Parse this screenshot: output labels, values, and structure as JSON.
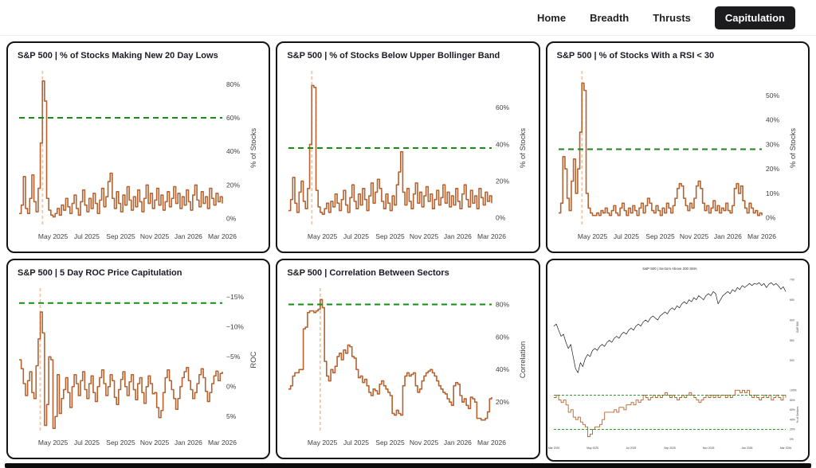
{
  "nav": {
    "items": [
      {
        "label": "Home",
        "active": false
      },
      {
        "label": "Breadth",
        "active": false
      },
      {
        "label": "Thrusts",
        "active": false
      },
      {
        "label": "Capitulation",
        "active": true
      }
    ]
  },
  "colors": {
    "line": "#b5622f",
    "price": "#1a1a1a",
    "threshold": "#1a8a1a",
    "vline": "#f2c5a4",
    "tick": "#3f3f3f",
    "panel_border": "#141414",
    "nav_active_bg": "#1c1c1e",
    "title_text": "#1b1b26"
  },
  "chart_data": [
    {
      "type": "line",
      "kind": "main",
      "title": "S&P 500 | % of Stocks Making New 20 Day Lows",
      "ytitle": "% of Stocks",
      "ydomain": [
        88,
        -4
      ],
      "yticks": [
        {
          "v": 0,
          "label": "0%"
        },
        {
          "v": 20,
          "label": "20%"
        },
        {
          "v": 40,
          "label": "40%"
        },
        {
          "v": 60,
          "label": "60%"
        },
        {
          "v": 80,
          "label": "80%"
        }
      ],
      "xticks": [
        {
          "p": 0.167,
          "label": "May 2025"
        },
        {
          "p": 0.333,
          "label": "Jul 2025"
        },
        {
          "p": 0.5,
          "label": "Sep 2025"
        },
        {
          "p": 0.667,
          "label": "Nov 2025"
        },
        {
          "p": 0.833,
          "label": "Jan 2026"
        },
        {
          "p": 1,
          "label": "Mar 2026"
        }
      ],
      "thresholds": [
        60
      ],
      "vline": 0.115,
      "color": "#b5622f",
      "values": [
        3,
        8,
        25,
        6,
        3,
        12,
        26,
        10,
        4,
        18,
        45,
        82,
        70,
        12,
        5,
        2,
        1,
        3,
        6,
        2,
        8,
        5,
        12,
        7,
        3,
        9,
        14,
        6,
        2,
        10,
        17,
        8,
        4,
        12,
        6,
        15,
        9,
        3,
        11,
        18,
        7,
        13,
        22,
        27,
        12,
        6,
        16,
        9,
        4,
        14,
        8,
        19,
        11,
        5,
        13,
        7,
        17,
        10,
        4,
        12,
        20,
        9,
        15,
        6,
        11,
        18,
        8,
        14,
        5,
        10,
        16,
        7,
        12,
        19,
        9,
        15,
        6,
        13,
        8,
        17,
        10,
        5,
        14,
        20,
        11,
        7,
        16,
        9,
        13,
        6,
        18,
        12,
        8,
        15,
        10,
        13,
        9
      ]
    },
    {
      "type": "line",
      "kind": "main",
      "title": "S&P 500 | % of Stocks Below Upper Bollinger Band",
      "ytitle": "% of Stocks",
      "ydomain": [
        80,
        -4
      ],
      "yticks": [
        {
          "v": 0,
          "label": "0%"
        },
        {
          "v": 20,
          "label": "20%"
        },
        {
          "v": 40,
          "label": "40%"
        },
        {
          "v": 60,
          "label": "60%"
        }
      ],
      "xticks": [
        {
          "p": 0.167,
          "label": "May 2025"
        },
        {
          "p": 0.333,
          "label": "Jul 2025"
        },
        {
          "p": 0.5,
          "label": "Sep 2025"
        },
        {
          "p": 0.667,
          "label": "Nov 2025"
        },
        {
          "p": 0.833,
          "label": "Jan 2026"
        },
        {
          "p": 1,
          "label": "Mar 2026"
        }
      ],
      "thresholds": [
        38
      ],
      "vline": 0.115,
      "color": "#b5622f",
      "values": [
        4,
        10,
        22,
        8,
        3,
        14,
        20,
        9,
        5,
        16,
        40,
        72,
        71,
        15,
        6,
        3,
        2,
        5,
        8,
        3,
        9,
        6,
        13,
        8,
        4,
        10,
        15,
        7,
        3,
        11,
        18,
        9,
        5,
        13,
        7,
        16,
        10,
        4,
        12,
        19,
        8,
        14,
        21,
        16,
        9,
        5,
        13,
        8,
        4,
        12,
        7,
        18,
        25,
        36,
        14,
        7,
        16,
        9,
        5,
        13,
        19,
        8,
        14,
        6,
        12,
        17,
        9,
        13,
        5,
        10,
        15,
        7,
        11,
        18,
        8,
        14,
        6,
        12,
        7,
        16,
        9,
        5,
        13,
        18,
        10,
        6,
        15,
        8,
        12,
        5,
        16,
        11,
        7,
        14,
        9,
        12,
        8
      ]
    },
    {
      "type": "line",
      "kind": "main",
      "title": "S&P 500 | % of Stocks With a RSI < 30",
      "ytitle": "% of Stocks",
      "ydomain": [
        60,
        -3
      ],
      "yticks": [
        {
          "v": 0,
          "label": "0%"
        },
        {
          "v": 10,
          "label": "10%"
        },
        {
          "v": 20,
          "label": "20%"
        },
        {
          "v": 30,
          "label": "30%"
        },
        {
          "v": 40,
          "label": "40%"
        },
        {
          "v": 50,
          "label": "50%"
        }
      ],
      "xticks": [
        {
          "p": 0.167,
          "label": "May 2025"
        },
        {
          "p": 0.333,
          "label": "Jul 2025"
        },
        {
          "p": 0.5,
          "label": "Sep 2025"
        },
        {
          "p": 0.667,
          "label": "Nov 2025"
        },
        {
          "p": 0.833,
          "label": "Jan 2026"
        },
        {
          "p": 1,
          "label": "Mar 2026"
        }
      ],
      "thresholds": [
        28
      ],
      "vline": 0.115,
      "color": "#b5622f",
      "values": [
        2,
        6,
        25,
        20,
        8,
        3,
        15,
        24,
        10,
        20,
        35,
        55,
        52,
        10,
        4,
        2,
        1,
        1,
        2,
        1,
        3,
        2,
        4,
        2,
        1,
        3,
        5,
        2,
        1,
        4,
        6,
        3,
        1,
        4,
        2,
        5,
        3,
        1,
        4,
        6,
        2,
        5,
        8,
        6,
        3,
        2,
        5,
        3,
        1,
        4,
        2,
        6,
        4,
        2,
        5,
        8,
        12,
        14,
        13,
        8,
        5,
        3,
        6,
        4,
        8,
        13,
        15,
        12,
        6,
        3,
        5,
        2,
        4,
        7,
        3,
        5,
        2,
        4,
        3,
        6,
        3,
        2,
        5,
        12,
        14,
        10,
        13,
        7,
        4,
        2,
        6,
        4,
        2,
        3,
        1,
        2,
        1
      ]
    },
    {
      "type": "line",
      "kind": "main",
      "title": "S&P 500 | 5 Day ROC Price Capitulation",
      "ytitle": "ROC",
      "ydomain": [
        -16.5,
        7.5
      ],
      "yticks": [
        {
          "v": -15,
          "label": "−15%"
        },
        {
          "v": -10,
          "label": "−10%"
        },
        {
          "v": -5,
          "label": "−5%"
        },
        {
          "v": 0,
          "label": "0%"
        },
        {
          "v": 5,
          "label": "5%"
        }
      ],
      "xticks": [
        {
          "p": 0.167,
          "label": "May 2025"
        },
        {
          "p": 0.333,
          "label": "Jul 2025"
        },
        {
          "p": 0.5,
          "label": "Sep 2025"
        },
        {
          "p": 0.667,
          "label": "Nov 2025"
        },
        {
          "p": 0.833,
          "label": "Jan 2026"
        },
        {
          "p": 1,
          "label": "Mar 2026"
        }
      ],
      "thresholds": [
        -14
      ],
      "vline": 0.104,
      "color": "#b5622f",
      "values": [
        -4.5,
        -3,
        -0.5,
        1.5,
        -1,
        -2.5,
        1,
        2,
        -3.5,
        -8,
        -12.5,
        -9,
        6.5,
        3,
        -5,
        -4.5,
        7,
        5,
        -2,
        4.5,
        2,
        0.5,
        -1.5,
        1,
        3.5,
        0,
        -2,
        -0.5,
        1.5,
        -1,
        -2.5,
        0.5,
        2,
        -0.5,
        -1.8,
        1,
        2.5,
        0,
        -1.5,
        -2.8,
        -0.5,
        1.5,
        0,
        -2,
        -1,
        1.8,
        3,
        0.5,
        -1.2,
        -2.5,
        0,
        1.5,
        -0.8,
        -2,
        0.5,
        2.2,
        -0.5,
        -1.5,
        1,
        2.8,
        0,
        -1.8,
        -0.5,
        1.2,
        1,
        3.5,
        5.2,
        4,
        1,
        -1.5,
        -2.8,
        -1,
        0.5,
        2,
        3.8,
        2,
        0,
        -1.5,
        -2.5,
        -3.2,
        -1,
        0.5,
        2,
        1,
        -0.5,
        -2,
        -3,
        -1.5,
        0.8,
        2.5,
        1,
        -0.5,
        -1.8,
        -2.6,
        -1,
        -2.2,
        -2.5
      ]
    },
    {
      "type": "line",
      "kind": "main",
      "title": "S&P 500 | Correlation Between Sectors",
      "ytitle": "Correlation",
      "ydomain": [
        90,
        2
      ],
      "yticks": [
        {
          "v": 20,
          "label": "20%"
        },
        {
          "v": 40,
          "label": "40%"
        },
        {
          "v": 60,
          "label": "60%"
        },
        {
          "v": 80,
          "label": "80%"
        }
      ],
      "xticks": [
        {
          "p": 0.167,
          "label": "May 2025"
        },
        {
          "p": 0.333,
          "label": "Jul 2025"
        },
        {
          "p": 0.5,
          "label": "Sep 2025"
        },
        {
          "p": 0.667,
          "label": "Nov 2025"
        },
        {
          "p": 0.833,
          "label": "Jan 2026"
        },
        {
          "p": 1,
          "label": "Mar 2026"
        }
      ],
      "thresholds": [
        80
      ],
      "vline": 0.156,
      "color": "#b5622f",
      "values": [
        28,
        30,
        36,
        38,
        38,
        40,
        40,
        65,
        66,
        75,
        76,
        76,
        75,
        76,
        77,
        83,
        78,
        45,
        36,
        33,
        40,
        38,
        42,
        48,
        50,
        46,
        52,
        50,
        55,
        54,
        48,
        47,
        40,
        35,
        36,
        32,
        34,
        30,
        26,
        24,
        28,
        27,
        25,
        31,
        33,
        30,
        28,
        26,
        24,
        13,
        12,
        15,
        13,
        12,
        30,
        36,
        38,
        36,
        37,
        38,
        30,
        26,
        28,
        33,
        36,
        38,
        39,
        40,
        38,
        36,
        33,
        30,
        28,
        26,
        25,
        22,
        20,
        18,
        30,
        32,
        31,
        24,
        20,
        22,
        18,
        16,
        23,
        22,
        20,
        10,
        10,
        9,
        9,
        10,
        14,
        22,
        23
      ]
    },
    {
      "type": "line",
      "kind": "mt",
      "linear": true,
      "inlineTitle": "S&P 500 | Sectors Above 200 SMA",
      "ytitle": "S&P 500",
      "ydomain": [
        710,
        455
      ],
      "yticks": [
        {
          "v": 700,
          "label": "700"
        },
        {
          "v": 650,
          "label": "650"
        },
        {
          "v": 600,
          "label": "600"
        },
        {
          "v": 550,
          "label": "550"
        },
        {
          "v": 500,
          "label": "500"
        }
      ],
      "xticks": [],
      "thresholds": [],
      "color": "#1a1a1a",
      "values": [
        585,
        590,
        575,
        560,
        565,
        545,
        530,
        540,
        510,
        480,
        470,
        495,
        485,
        505,
        515,
        510,
        525,
        530,
        525,
        535,
        540,
        535,
        545,
        550,
        545,
        555,
        560,
        555,
        565,
        570,
        565,
        575,
        580,
        575,
        585,
        590,
        585,
        595,
        600,
        595,
        605,
        610,
        605,
        600,
        610,
        615,
        620,
        615,
        625,
        630,
        625,
        635,
        630,
        640,
        645,
        640,
        650,
        645,
        655,
        650,
        660,
        655,
        650,
        660,
        665,
        660,
        670,
        665,
        640,
        650,
        660,
        665,
        670,
        665,
        675,
        670,
        680,
        675,
        685,
        680,
        685,
        690,
        685,
        690,
        688,
        692,
        685,
        690,
        680,
        688,
        692,
        686,
        690,
        684,
        676,
        682,
        670
      ]
    },
    {
      "type": "line",
      "kind": "mb",
      "ytitle": "% of Sectors",
      "ydomain": [
        107,
        -7
      ],
      "yticks": [
        {
          "v": 100,
          "label": "100%"
        },
        {
          "v": 80,
          "label": "80%"
        },
        {
          "v": 60,
          "label": "60%"
        },
        {
          "v": 40,
          "label": "40%"
        },
        {
          "v": 20,
          "label": "20%"
        },
        {
          "v": 0,
          "label": "0%"
        }
      ],
      "xticks": [
        {
          "p": 0,
          "label": "Mar 2025"
        },
        {
          "p": 0.167,
          "label": "May 2025"
        },
        {
          "p": 0.333,
          "label": "Jul 2025"
        },
        {
          "p": 0.5,
          "label": "Sep 2025"
        },
        {
          "p": 0.667,
          "label": "Nov 2025"
        },
        {
          "p": 0.833,
          "label": "Jan 2026"
        },
        {
          "p": 1,
          "label": "Mar 2026"
        }
      ],
      "thresholds": [
        90,
        20
      ],
      "color": "#b5622f",
      "values": [
        85,
        90,
        80,
        75,
        80,
        70,
        55,
        60,
        45,
        40,
        45,
        35,
        30,
        25,
        5,
        10,
        20,
        25,
        25,
        30,
        40,
        55,
        55,
        55,
        55,
        60,
        55,
        65,
        65,
        60,
        70,
        70,
        75,
        70,
        80,
        75,
        80,
        90,
        85,
        80,
        85,
        90,
        85,
        90,
        85,
        90,
        95,
        90,
        85,
        90,
        85,
        80,
        85,
        90,
        85,
        90,
        95,
        90,
        85,
        80,
        75,
        80,
        85,
        90,
        85,
        90,
        85,
        90,
        85,
        90,
        90,
        85,
        90,
        85,
        90,
        100,
        100,
        95,
        100,
        95,
        100,
        90,
        85,
        90,
        85,
        80,
        85,
        90,
        85,
        90,
        80,
        85,
        90,
        85,
        80,
        90,
        85
      ]
    }
  ]
}
